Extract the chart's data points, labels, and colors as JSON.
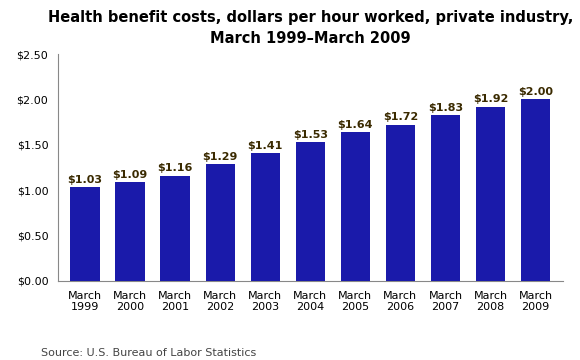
{
  "title_line1": "Health benefit costs, dollars per hour worked, private industry,",
  "title_line2": "March 1999–March 2009",
  "categories": [
    "March\n1999",
    "March\n2000",
    "March\n2001",
    "March\n2002",
    "March\n2003",
    "March\n2004",
    "March\n2005",
    "March\n2006",
    "March\n2007",
    "March\n2008",
    "March\n2009"
  ],
  "values": [
    1.03,
    1.09,
    1.16,
    1.29,
    1.41,
    1.53,
    1.64,
    1.72,
    1.83,
    1.92,
    2.0
  ],
  "labels": [
    "$1.03",
    "$1.09",
    "$1.16",
    "$1.29",
    "$1.41",
    "$1.53",
    "$1.64",
    "$1.72",
    "$1.83",
    "$1.92",
    "$2.00"
  ],
  "bar_color": "#1a1aaa",
  "ylim": [
    0,
    2.5
  ],
  "yticks": [
    0.0,
    0.5,
    1.0,
    1.5,
    2.0,
    2.5
  ],
  "ytick_labels": [
    "$0.00",
    "$0.50",
    "$1.00",
    "$1.50",
    "$2.00",
    "$2.50"
  ],
  "source": "Source: U.S. Bureau of Labor Statistics",
  "background_color": "#ffffff",
  "title_fontsize": 10.5,
  "label_fontsize": 8.0,
  "label_color": "#3a2a00",
  "tick_fontsize": 8.0,
  "source_fontsize": 8.0
}
